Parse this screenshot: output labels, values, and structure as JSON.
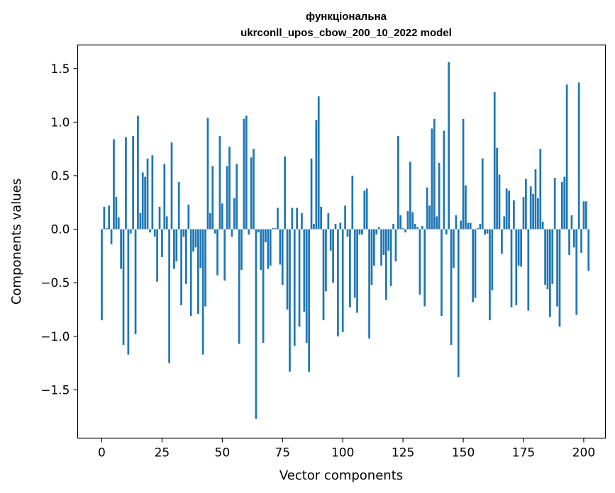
{
  "chart_data": {
    "type": "bar",
    "title_line1": "функціональна",
    "title_line2": "ukrconll_upos_cbow_200_10_2022 model",
    "xlabel": "Vector components",
    "ylabel": "Components values",
    "xlim": [
      -10,
      209
    ],
    "ylim": [
      -1.95,
      1.72
    ],
    "xticks": [
      0,
      25,
      50,
      75,
      100,
      125,
      150,
      175,
      200
    ],
    "yticks": [
      -1.5,
      -1.0,
      -0.5,
      0.0,
      0.5,
      1.0,
      1.5
    ],
    "ytick_labels": [
      "−1.5",
      "−1.0",
      "−0.5",
      "0.0",
      "0.5",
      "1.0",
      "1.5"
    ],
    "bar_color": "#1f77b4",
    "grid": false,
    "values": [
      -0.85,
      0.21,
      0.01,
      0.22,
      -0.14,
      0.84,
      0.3,
      0.11,
      -0.37,
      -1.08,
      0.86,
      -1.17,
      -0.04,
      0.87,
      -0.98,
      1.06,
      0.15,
      0.53,
      0.49,
      0.66,
      -0.03,
      0.69,
      -0.07,
      -0.49,
      0.21,
      -0.26,
      0.61,
      0.12,
      -1.25,
      0.81,
      -0.37,
      -0.3,
      0.44,
      -0.71,
      -0.07,
      -0.51,
      0.23,
      -0.81,
      -0.21,
      -0.17,
      -0.79,
      -0.36,
      -1.17,
      -0.72,
      1.04,
      0.15,
      0.59,
      -0.04,
      -0.43,
      0.87,
      0.24,
      -0.48,
      0.59,
      0.77,
      -0.07,
      0.29,
      0.61,
      -1.07,
      -0.38,
      1.03,
      1.06,
      -0.05,
      0.67,
      0.75,
      -1.77,
      -0.03,
      -0.38,
      -1.06,
      -0.12,
      -0.37,
      -0.34,
      0.01,
      0.01,
      0.2,
      -0.33,
      -0.52,
      0.68,
      -0.75,
      -1.33,
      0.2,
      -1.09,
      0.2,
      -0.91,
      0.15,
      -0.77,
      -1.06,
      -1.33,
      0.66,
      0.05,
      1.02,
      1.24,
      0.21,
      -0.85,
      -0.58,
      0.15,
      -0.2,
      -0.5,
      0.05,
      -1.0,
      0.06,
      -0.96,
      0.22,
      -0.07,
      -0.73,
      0.5,
      -0.64,
      -0.78,
      -0.05,
      -0.05,
      0.36,
      0.38,
      -1.02,
      -0.52,
      -0.34,
      -0.05,
      0.02,
      -0.34,
      -0.24,
      -0.66,
      -0.2,
      -0.53,
      0.05,
      -0.3,
      0.87,
      0.13,
      0.01,
      -0.03,
      0.17,
      0.63,
      0.16,
      0.05,
      0.02,
      -0.61,
      0.03,
      -0.72,
      0.39,
      0.22,
      0.94,
      1.03,
      0.12,
      0.62,
      -0.81,
      0.92,
      -0.05,
      1.56,
      -1.08,
      -0.36,
      0.13,
      -1.38,
      0.08,
      1.03,
      0.41,
      0.06,
      0.06,
      -0.68,
      -0.64,
      0.01,
      0.05,
      0.66,
      -0.05,
      -0.04,
      -0.85,
      -0.57,
      1.28,
      0.76,
      0.51,
      -0.23,
      0.12,
      0.38,
      0.36,
      -0.73,
      0.27,
      -0.71,
      -0.34,
      -0.35,
      0.3,
      0.47,
      -0.76,
      0.4,
      0.33,
      0.56,
      0.29,
      0.75,
      0.07,
      -0.52,
      -0.56,
      -0.82,
      -0.51,
      0.48,
      -0.72,
      -0.91,
      0.44,
      0.49,
      1.35,
      -0.24,
      0.13,
      -0.17,
      -0.8,
      1.37,
      -0.22,
      0.26,
      0.26,
      -0.39
    ]
  }
}
